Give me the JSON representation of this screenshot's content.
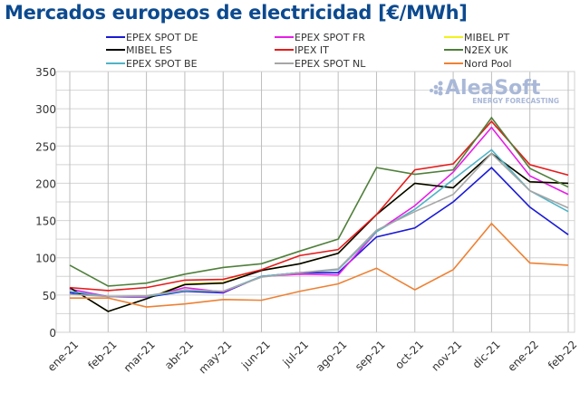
{
  "chart_data": {
    "type": "line",
    "title": "Mercados europeos de electricidad [€/MWh]",
    "xlabel": "",
    "ylabel": "",
    "ylim": [
      0,
      350
    ],
    "yticks": [
      0,
      50,
      100,
      150,
      200,
      250,
      300,
      350
    ],
    "grid": true,
    "legend_position": "top",
    "categories": [
      "ene-21",
      "feb-21",
      "mar-21",
      "abr-21",
      "may-21",
      "jun-21",
      "jul-21",
      "ago-21",
      "sep-21",
      "oct-21",
      "nov-21",
      "dic-21",
      "ene-22",
      "feb-22"
    ],
    "series": [
      {
        "name": "EPEX SPOT DE",
        "color": "#1a1ad6",
        "values": [
          53,
          48,
          47,
          55,
          53,
          75,
          80,
          80,
          128,
          140,
          175,
          221,
          168,
          131
        ]
      },
      {
        "name": "EPEX SPOT FR",
        "color": "#e61ee6",
        "values": [
          58,
          48,
          47,
          60,
          54,
          75,
          78,
          77,
          135,
          170,
          215,
          275,
          210,
          185
        ]
      },
      {
        "name": "MIBEL PT",
        "color": "#f2f21a",
        "values": [
          60,
          28,
          45,
          65,
          67,
          83,
          92,
          106,
          158,
          200,
          194,
          240,
          202,
          200
        ]
      },
      {
        "name": "MIBEL ES",
        "color": "#000000",
        "values": [
          60,
          28,
          45,
          64,
          66,
          83,
          92,
          106,
          158,
          200,
          194,
          240,
          202,
          200
        ]
      },
      {
        "name": "IPEX IT",
        "color": "#e61a1a",
        "values": [
          60,
          56,
          60,
          70,
          71,
          84,
          103,
          111,
          158,
          218,
          226,
          283,
          225,
          211
        ]
      },
      {
        "name": "N2EX UK",
        "color": "#4f7f3a",
        "values": [
          90,
          62,
          66,
          78,
          87,
          92,
          109,
          125,
          221,
          212,
          218,
          288,
          220,
          195
        ]
      },
      {
        "name": "EPEX SPOT BE",
        "color": "#4fb3c6",
        "values": [
          55,
          48,
          48,
          56,
          55,
          75,
          80,
          84,
          135,
          165,
          205,
          245,
          190,
          162
        ]
      },
      {
        "name": "EPEX SPOT NL",
        "color": "#a6a6a6",
        "values": [
          51,
          48,
          49,
          57,
          55,
          74,
          80,
          85,
          137,
          162,
          185,
          240,
          190,
          167
        ]
      },
      {
        "name": "Nord Pool",
        "color": "#ee8133",
        "values": [
          46,
          46,
          34,
          38,
          44,
          43,
          55,
          65,
          86,
          57,
          84,
          146,
          93,
          90
        ]
      }
    ]
  },
  "logo": {
    "name": "AleaSoft",
    "tagline": "ENERGY FORECASTING"
  }
}
